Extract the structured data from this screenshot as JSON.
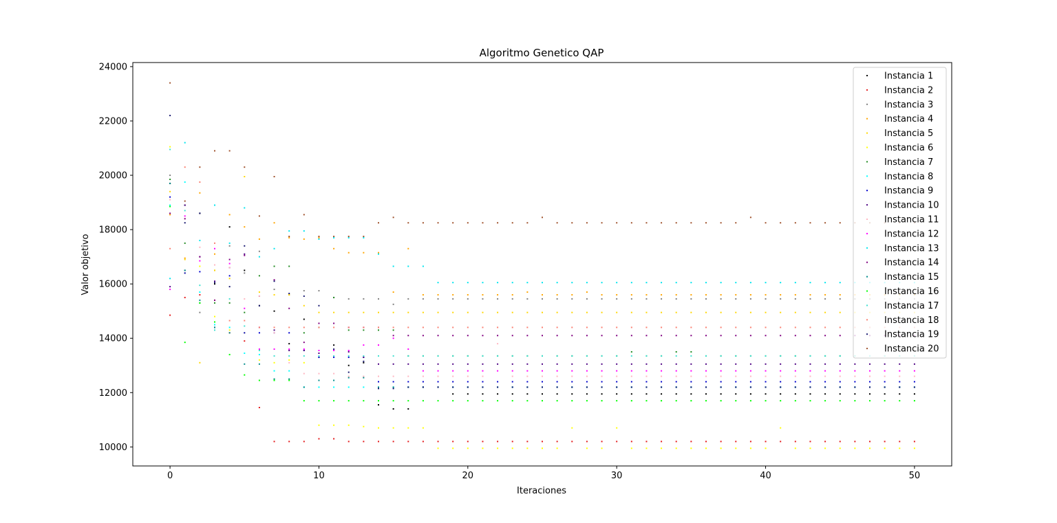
{
  "chart_data": {
    "type": "scatter",
    "title": "Algoritmo Genetico QAP",
    "xlabel": "Iteraciones",
    "ylabel": "Valor objetivo",
    "xlim": [
      -2.5,
      52.5
    ],
    "ylim": [
      9300,
      24150
    ],
    "xticks": [
      0,
      10,
      20,
      30,
      40,
      50
    ],
    "yticks": [
      10000,
      12000,
      14000,
      16000,
      18000,
      20000,
      22000,
      24000
    ],
    "grid": false,
    "legend_position": "upper right",
    "series": [
      {
        "name": "Instancia 1",
        "color": "#000000",
        "y": [
          19700,
          18900,
          18600,
          16000,
          18100,
          16500,
          15200,
          15000,
          13800,
          14700,
          13300,
          13750,
          13000,
          13100,
          11550,
          11400,
          11400,
          12200,
          12200,
          11950,
          11950,
          11950,
          11950,
          11950,
          11950,
          11950,
          11950,
          11950,
          11950,
          11950,
          11950,
          11950,
          11950,
          11950,
          11950,
          11950,
          11950,
          11950,
          11950,
          11950,
          11950,
          11950,
          11950,
          11950,
          11950,
          11950,
          11950,
          11950,
          11950,
          11950,
          11950
        ]
      },
      {
        "name": "Instancia 2",
        "color": "#e41a1c",
        "y": [
          14850,
          15500,
          15600,
          15400,
          14200,
          13900,
          11450,
          10200,
          10200,
          10200,
          10300,
          10300,
          10200,
          10200,
          10200,
          10200,
          10200,
          10200,
          10200,
          10200,
          10200,
          10200,
          10200,
          10200,
          10200,
          10200,
          10200,
          10200,
          10200,
          10200,
          10200,
          10200,
          10200,
          10200,
          10200,
          10200,
          10200,
          10200,
          10200,
          10200,
          10200,
          10200,
          10200,
          10200,
          10200,
          10200,
          10200,
          10200,
          10200,
          10200,
          10200
        ]
      },
      {
        "name": "Instancia 3",
        "color": "#808080",
        "y": [
          20000,
          16500,
          14950,
          16500,
          17400,
          16400,
          17200,
          15800,
          15600,
          15750,
          15750,
          15500,
          15450,
          15450,
          15450,
          15250,
          15450,
          15450,
          15450,
          15450,
          15450,
          15450,
          15450,
          15450,
          15450,
          15450,
          15450,
          15450,
          15450,
          15450,
          15450,
          15450,
          15450,
          15450,
          15450,
          15450,
          15450,
          15450,
          15450,
          15450,
          15450,
          15450,
          15450,
          15450,
          15450,
          15450,
          15450,
          15450,
          15450,
          15450,
          15450
        ]
      },
      {
        "name": "Instancia 4",
        "color": "#ffa500",
        "y": [
          18550,
          16950,
          19350,
          17100,
          18550,
          18100,
          17650,
          18250,
          17700,
          17650,
          17700,
          17300,
          17150,
          17150,
          17150,
          15700,
          17300,
          15600,
          15600,
          15600,
          15600,
          15600,
          15600,
          15600,
          15700,
          15600,
          15600,
          15600,
          15700,
          15600,
          15600,
          15600,
          15600,
          15600,
          15600,
          15600,
          15600,
          15600,
          15600,
          15600,
          15600,
          15600,
          15600,
          15600,
          15600,
          15600,
          15600,
          15600,
          15600,
          15600,
          15600
        ]
      },
      {
        "name": "Instancia 5",
        "color": "#ffd700",
        "y": [
          19400,
          16900,
          13100,
          16500,
          16200,
          19950,
          15700,
          15600,
          15600,
          15200,
          14950,
          14950,
          14950,
          14950,
          14950,
          14950,
          14950,
          14950,
          14950,
          14950,
          14950,
          14950,
          14950,
          14950,
          14950,
          14950,
          14950,
          14950,
          14950,
          14950,
          14950,
          14950,
          14950,
          14950,
          14950,
          14950,
          14950,
          14950,
          14950,
          14950,
          14950,
          14950,
          14950,
          14950,
          14950,
          14950,
          14950,
          14950,
          14950,
          14950,
          14950
        ]
      },
      {
        "name": "Instancia 6",
        "color": "#ffff00",
        "y": [
          21050,
          16400,
          16650,
          14800,
          14300,
          14200,
          13200,
          13100,
          13200,
          13100,
          10800,
          10800,
          10800,
          10750,
          10700,
          10700,
          10700,
          10700,
          9950,
          9950,
          9950,
          9950,
          9950,
          9950,
          9950,
          9950,
          9950,
          10700,
          9950,
          9950,
          10700,
          9950,
          9950,
          9950,
          9950,
          9950,
          9950,
          9950,
          9950,
          9950,
          9950,
          10700,
          9950,
          9950,
          9950,
          9950,
          9950,
          9950,
          9950,
          9950,
          9950
        ]
      },
      {
        "name": "Instancia 7",
        "color": "#228b22",
        "y": [
          19850,
          17500,
          15300,
          15300,
          15300,
          14950,
          16300,
          16650,
          16650,
          14200,
          14400,
          15500,
          14300,
          14300,
          14300,
          14300,
          13350,
          13350,
          13350,
          13350,
          13350,
          13350,
          13350,
          13350,
          13350,
          13350,
          13350,
          13350,
          13350,
          13350,
          13350,
          13500,
          13350,
          13350,
          13500,
          13500,
          13350,
          13350,
          13350,
          13350,
          13350,
          13350,
          13350,
          13350,
          13350,
          13350,
          13350,
          13350,
          13350,
          13350,
          13350
        ]
      },
      {
        "name": "Instancia 8",
        "color": "#00ffff",
        "y": [
          18900,
          19750,
          15700,
          14500,
          14400,
          13450,
          13400,
          12800,
          12800,
          12200,
          12200,
          12200,
          12200,
          12200,
          12200,
          12200,
          12200,
          12200,
          12200,
          12200,
          12200,
          12200,
          12200,
          12200,
          12200,
          12200,
          12200,
          12200,
          12200,
          12200,
          12200,
          12200,
          12200,
          12200,
          12200,
          12200,
          12200,
          12200,
          12200,
          12200,
          12200,
          12200,
          12200,
          12200,
          12200,
          12200,
          12200,
          12200,
          12200,
          12200,
          12200
        ]
      },
      {
        "name": "Instancia 9",
        "color": "#0000cd",
        "y": [
          19200,
          16400,
          16450,
          14400,
          16300,
          14200,
          14200,
          14200,
          14200,
          13550,
          13300,
          13300,
          13300,
          13300,
          12400,
          12400,
          12400,
          12400,
          12400,
          12400,
          12400,
          12400,
          12400,
          12400,
          12400,
          12400,
          12400,
          12400,
          12400,
          12400,
          12400,
          12400,
          12400,
          12400,
          12400,
          12400,
          12400,
          12400,
          12400,
          12400,
          12400,
          12400,
          12400,
          12400,
          12400,
          12400,
          12400,
          12400,
          12400,
          12400,
          12400
        ]
      },
      {
        "name": "Instancia 10",
        "color": "#4b0082",
        "y": [
          15900,
          18900,
          17000,
          16100,
          16600,
          17100,
          15550,
          14300,
          13550,
          13550,
          13450,
          13550,
          13500,
          13300,
          13050,
          13050,
          13050,
          13050,
          13050,
          13050,
          13050,
          13050,
          13050,
          13050,
          13050,
          13050,
          13050,
          13050,
          13050,
          13050,
          13050,
          13050,
          13050,
          13050,
          13050,
          13050,
          13050,
          13050,
          13050,
          13050,
          13050,
          13050,
          13050,
          13050,
          13050,
          13050,
          13050,
          13050,
          13050,
          13050,
          13050
        ]
      },
      {
        "name": "Instancia 11",
        "color": "#ffb6c1",
        "y": [
          19100,
          18400,
          17350,
          16700,
          16600,
          15450,
          15550,
          14200,
          13100,
          12700,
          12700,
          12700,
          12600,
          12600,
          12600,
          12600,
          12600,
          12600,
          12600,
          12600,
          12600,
          12600,
          13800,
          12600,
          12600,
          12600,
          12600,
          12600,
          12600,
          12600,
          12600,
          12600,
          12600,
          12600,
          12600,
          12600,
          12600,
          12600,
          12600,
          12600,
          12600,
          12600,
          12600,
          12600,
          12600,
          12600,
          12600,
          12600,
          12600,
          12600,
          12600
        ]
      },
      {
        "name": "Instancia 12",
        "color": "#ff00ff",
        "y": [
          15800,
          18500,
          16850,
          17300,
          16750,
          15100,
          13600,
          13600,
          13600,
          13600,
          13550,
          13550,
          13550,
          13750,
          13750,
          14000,
          13600,
          12800,
          12800,
          12800,
          12800,
          12800,
          12800,
          12800,
          12800,
          12800,
          12800,
          12800,
          12800,
          12800,
          12800,
          12800,
          12800,
          12800,
          12800,
          12800,
          12800,
          12800,
          12800,
          12800,
          12800,
          12800,
          12800,
          12800,
          12800,
          12800,
          12800,
          12800,
          12800,
          12800,
          12800
        ]
      },
      {
        "name": "Instancia 13",
        "color": "#00e5ee",
        "y": [
          16200,
          21200,
          17600,
          18900,
          17500,
          18800,
          17000,
          17300,
          17950,
          17950,
          17650,
          17700,
          17700,
          17700,
          17100,
          16650,
          16650,
          16650,
          16050,
          16050,
          16050,
          16050,
          16050,
          16050,
          16050,
          16050,
          16050,
          16050,
          16050,
          16050,
          16050,
          16050,
          16050,
          16050,
          16050,
          16050,
          16050,
          16050,
          16050,
          16050,
          16050,
          16050,
          16050,
          16050,
          16050,
          16050,
          16050,
          16050,
          16050,
          16050,
          16050
        ]
      },
      {
        "name": "Instancia 14",
        "color": "#800080",
        "y": [
          18600,
          18400,
          17000,
          15400,
          16900,
          17050,
          14400,
          16150,
          15100,
          13850,
          14550,
          14550,
          14400,
          14400,
          14400,
          14100,
          14100,
          14100,
          14100,
          14100,
          14100,
          14100,
          14100,
          14100,
          14100,
          14100,
          14100,
          14100,
          14100,
          14100,
          14100,
          14100,
          14100,
          14100,
          14100,
          14100,
          14100,
          14100,
          14100,
          14100,
          14100,
          14100,
          14100,
          14100,
          14100,
          14100,
          14100,
          14100,
          14100,
          14100,
          14100
        ]
      },
      {
        "name": "Instancia 15",
        "color": "#008b8b",
        "y": [
          19700,
          16500,
          15400,
          14400,
          14200,
          13050,
          13050,
          12500,
          12500,
          12200,
          12450,
          12450,
          12550,
          12550,
          12200,
          12200,
          12200,
          12200,
          12200,
          12200,
          12200,
          12200,
          12200,
          12200,
          12200,
          12200,
          12200,
          12200,
          12200,
          12200,
          12200,
          12200,
          12200,
          12200,
          12200,
          12200,
          12200,
          12200,
          12200,
          12200,
          12200,
          12200,
          12200,
          12200,
          12200,
          12200,
          12200,
          12200,
          12200,
          12200,
          12200
        ]
      },
      {
        "name": "Instancia 16",
        "color": "#00ff00",
        "y": [
          18850,
          13850,
          15300,
          14600,
          13400,
          12650,
          12450,
          12450,
          12450,
          11700,
          11700,
          11700,
          11700,
          11700,
          11700,
          11700,
          11700,
          11700,
          11700,
          11700,
          11700,
          11700,
          11700,
          11700,
          11700,
          11700,
          11700,
          11700,
          11700,
          11700,
          11700,
          11700,
          11700,
          11700,
          11700,
          11700,
          11700,
          11700,
          11700,
          11700,
          11700,
          11700,
          11700,
          11700,
          11700,
          11700,
          11700,
          11700,
          11700,
          11700,
          11700
        ]
      },
      {
        "name": "Instancia 17",
        "color": "#40e0d0",
        "y": [
          20950,
          18700,
          15950,
          14300,
          15450,
          14450,
          13550,
          13350,
          13350,
          13350,
          13350,
          13350,
          13350,
          13350,
          13350,
          13350,
          13350,
          13350,
          13350,
          13350,
          13350,
          13350,
          13350,
          13350,
          13350,
          13350,
          13350,
          13350,
          13350,
          13350,
          13350,
          13350,
          13350,
          13350,
          13350,
          13350,
          13350,
          13350,
          13350,
          13350,
          13350,
          13350,
          13350,
          13350,
          13350,
          13350,
          13350,
          13350,
          13350,
          13350,
          13350
        ]
      },
      {
        "name": "Instancia 18",
        "color": "#fa8072",
        "y": [
          17300,
          20300,
          19750,
          17500,
          14650,
          14650,
          14400,
          14400,
          14400,
          14400,
          14400,
          14400,
          14400,
          14400,
          14400,
          14400,
          14400,
          14400,
          14400,
          14400,
          14400,
          14400,
          14400,
          14400,
          14400,
          14400,
          14400,
          14400,
          14400,
          14400,
          14400,
          14400,
          14400,
          14400,
          14400,
          14400,
          14400,
          14400,
          14400,
          14400,
          14400,
          14400,
          14400,
          14400,
          14400,
          14400,
          14400,
          14400,
          14400,
          14400,
          14400
        ]
      },
      {
        "name": "Instancia 19",
        "color": "#191970",
        "y": [
          22200,
          18250,
          18600,
          16050,
          15900,
          17400,
          15200,
          16100,
          15650,
          15550,
          15200,
          13600,
          12750,
          13150,
          12150,
          12150,
          12200,
          12200,
          12200,
          12200,
          12200,
          12200,
          12200,
          12200,
          12200,
          12200,
          12200,
          12200,
          12200,
          12200,
          12200,
          12200,
          12200,
          12200,
          12200,
          12200,
          12200,
          12200,
          12200,
          12200,
          12200,
          12200,
          12200,
          12200,
          12200,
          12200,
          12200,
          12200,
          12200,
          12200,
          12200
        ]
      },
      {
        "name": "Instancia 20",
        "color": "#a0522d",
        "y": [
          23400,
          19050,
          20300,
          20900,
          20900,
          20300,
          18500,
          19950,
          17750,
          18550,
          17750,
          17750,
          17750,
          17750,
          18250,
          18450,
          18250,
          18250,
          18250,
          18250,
          18250,
          18250,
          18250,
          18250,
          18250,
          18450,
          18250,
          18250,
          18250,
          18250,
          18250,
          18250,
          18250,
          18250,
          18250,
          18250,
          18250,
          18250,
          18250,
          18450,
          18250,
          18250,
          18250,
          18250,
          18250,
          18250,
          18250,
          18250,
          18250,
          18250,
          18250
        ]
      }
    ]
  }
}
